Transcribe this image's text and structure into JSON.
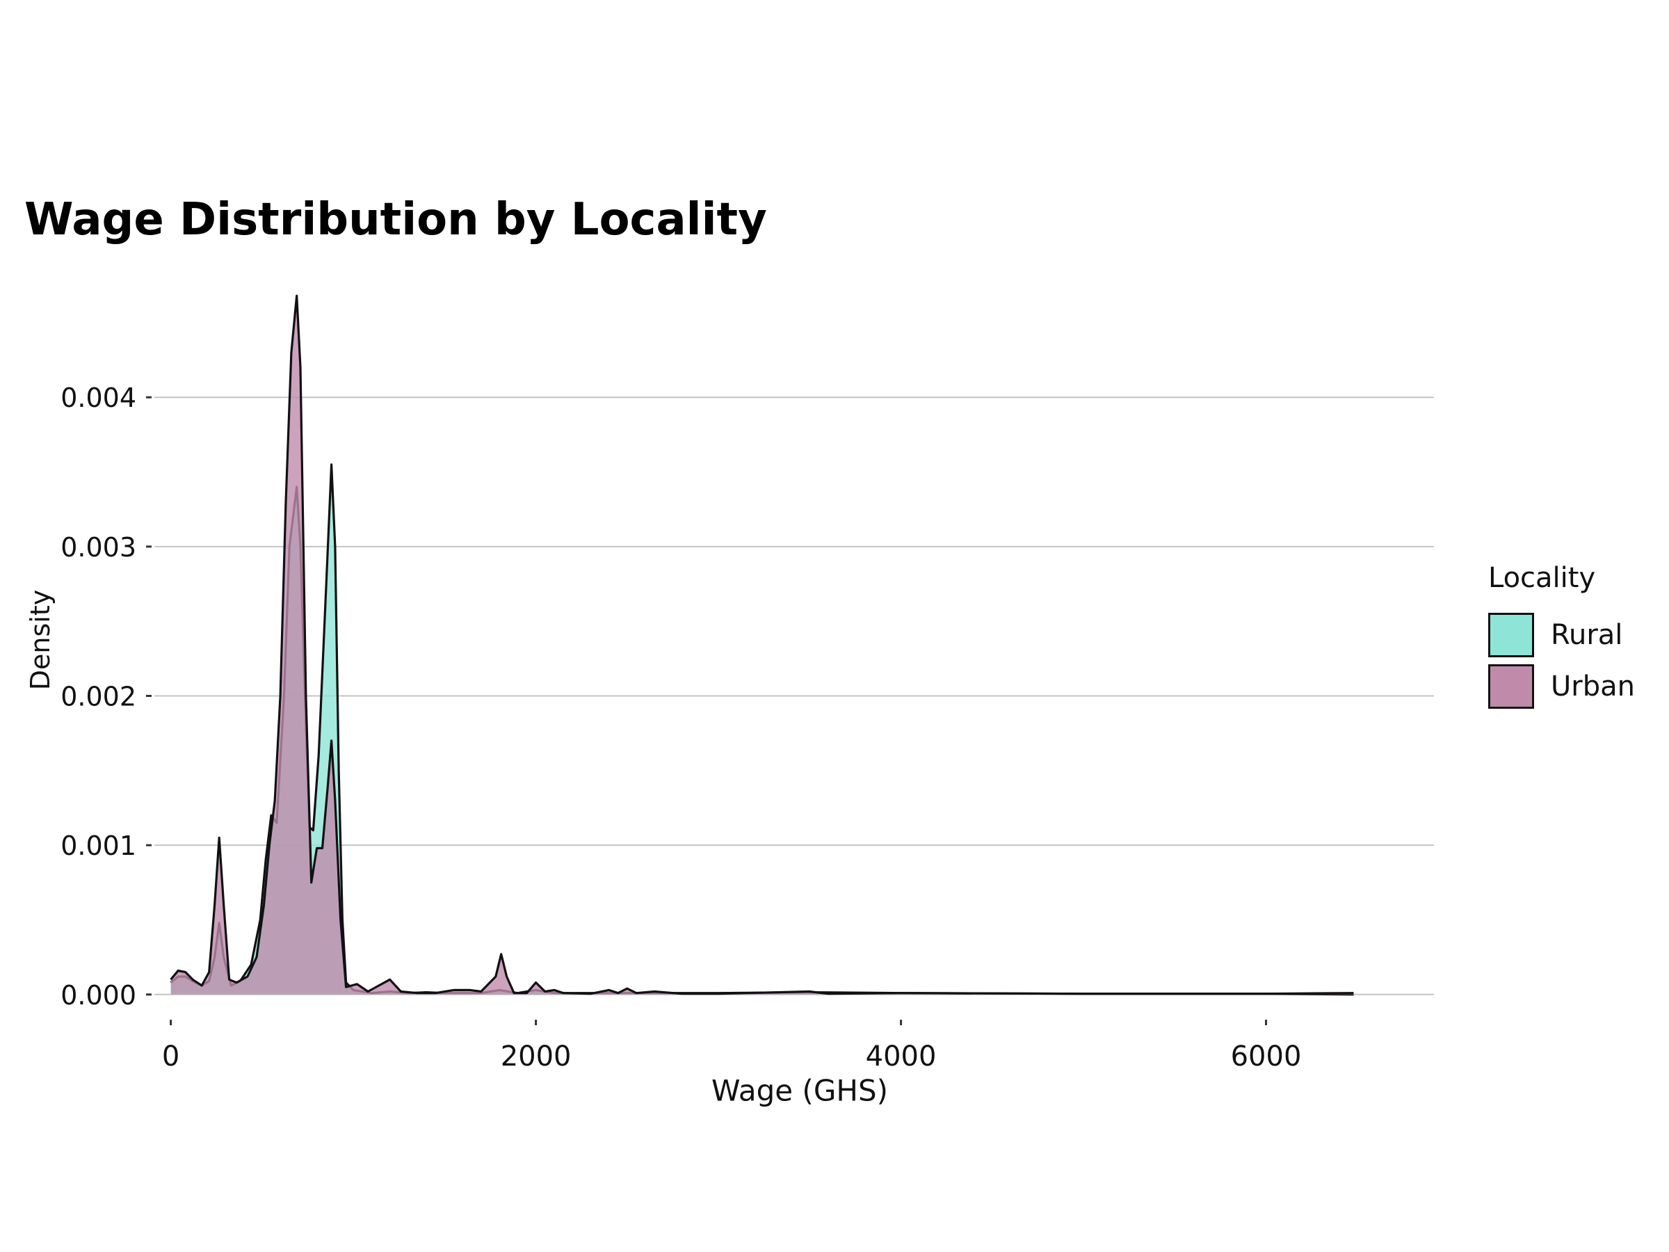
{
  "chart_data": {
    "type": "area",
    "title": "Wage Distribution by Locality",
    "xlabel": "Wage (GHS)",
    "ylabel": "Density",
    "xlim": [
      -90,
      6920
    ],
    "ylim": [
      -0.00015,
      0.0049
    ],
    "x_ticks": [
      0,
      2000,
      4000,
      6000
    ],
    "x_tick_labels": [
      "0",
      "2000",
      "4000",
      "6000"
    ],
    "y_ticks": [
      0.0,
      0.001,
      0.002,
      0.003,
      0.004
    ],
    "y_tick_labels": [
      "0.000",
      "0.001",
      "0.002",
      "0.003",
      "0.004"
    ],
    "grid": "horizontal major",
    "legend": {
      "title": "Locality",
      "placement": "right"
    },
    "series": [
      {
        "name": "Rural",
        "color": "#8EE5D7",
        "points": [
          [
            0,
            8e-05
          ],
          [
            40,
            0.00012
          ],
          [
            80,
            0.00012
          ],
          [
            120,
            9e-05
          ],
          [
            170,
            6e-05
          ],
          [
            210,
            9e-05
          ],
          [
            240,
            0.00025
          ],
          [
            265,
            0.00048
          ],
          [
            290,
            0.00025
          ],
          [
            330,
            6e-05
          ],
          [
            380,
            9e-05
          ],
          [
            440,
            0.0002
          ],
          [
            490,
            0.0005
          ],
          [
            520,
            0.0009
          ],
          [
            550,
            0.0012
          ],
          [
            580,
            0.00115
          ],
          [
            620,
            0.002
          ],
          [
            650,
            0.003
          ],
          [
            690,
            0.0034
          ],
          [
            710,
            0.003
          ],
          [
            740,
            0.0018
          ],
          [
            760,
            0.00112
          ],
          [
            780,
            0.0011
          ],
          [
            810,
            0.0016
          ],
          [
            850,
            0.0027
          ],
          [
            880,
            0.00355
          ],
          [
            900,
            0.003
          ],
          [
            920,
            0.0015
          ],
          [
            940,
            0.0005
          ],
          [
            960,
            8e-05
          ],
          [
            1000,
            3e-05
          ],
          [
            1100,
            1e-05
          ],
          [
            1200,
            2e-05
          ],
          [
            1300,
            1e-05
          ],
          [
            1400,
            1.5e-05
          ],
          [
            1500,
            1e-05
          ],
          [
            1600,
            1e-05
          ],
          [
            1700,
            1e-05
          ],
          [
            1800,
            3e-05
          ],
          [
            1900,
            1e-05
          ],
          [
            2000,
            3e-05
          ],
          [
            2100,
            1e-05
          ],
          [
            2400,
            1e-05
          ],
          [
            2600,
            1e-05
          ],
          [
            3000,
            1e-05
          ],
          [
            3500,
            1.5e-05
          ],
          [
            4000,
            1e-05
          ],
          [
            5000,
            5e-06
          ],
          [
            6000,
            5e-06
          ],
          [
            6480,
            0.0
          ]
        ]
      },
      {
        "name": "Urban",
        "color": "#C08BAB",
        "points": [
          [
            0,
            0.0001
          ],
          [
            40,
            0.00016
          ],
          [
            80,
            0.00015
          ],
          [
            120,
            0.0001
          ],
          [
            170,
            6e-05
          ],
          [
            210,
            0.00015
          ],
          [
            240,
            0.0006
          ],
          [
            265,
            0.00105
          ],
          [
            290,
            0.0006
          ],
          [
            320,
            0.0001
          ],
          [
            360,
            8e-05
          ],
          [
            420,
            0.00012
          ],
          [
            470,
            0.00025
          ],
          [
            510,
            0.0006
          ],
          [
            540,
            0.001
          ],
          [
            570,
            0.0013
          ],
          [
            600,
            0.002
          ],
          [
            630,
            0.0033
          ],
          [
            660,
            0.0043
          ],
          [
            690,
            0.00468
          ],
          [
            710,
            0.0042
          ],
          [
            740,
            0.002
          ],
          [
            770,
            0.00075
          ],
          [
            800,
            0.00098
          ],
          [
            830,
            0.00098
          ],
          [
            860,
            0.0014
          ],
          [
            880,
            0.0017
          ],
          [
            900,
            0.0013
          ],
          [
            930,
            0.0005
          ],
          [
            960,
            5e-05
          ],
          [
            1020,
            7e-05
          ],
          [
            1080,
            2e-05
          ],
          [
            1140,
            6e-05
          ],
          [
            1200,
            0.0001
          ],
          [
            1260,
            2e-05
          ],
          [
            1350,
            1e-05
          ],
          [
            1450,
            1e-05
          ],
          [
            1550,
            3e-05
          ],
          [
            1640,
            3e-05
          ],
          [
            1700,
            2e-05
          ],
          [
            1780,
            0.00012
          ],
          [
            1810,
            0.00027
          ],
          [
            1840,
            0.00012
          ],
          [
            1880,
            1e-05
          ],
          [
            1950,
            1e-05
          ],
          [
            2000,
            8e-05
          ],
          [
            2050,
            2e-05
          ],
          [
            2100,
            3e-05
          ],
          [
            2150,
            1e-05
          ],
          [
            2300,
            5e-06
          ],
          [
            2400,
            3e-05
          ],
          [
            2450,
            1e-05
          ],
          [
            2500,
            4e-05
          ],
          [
            2550,
            1e-05
          ],
          [
            2650,
            2e-05
          ],
          [
            2800,
            5e-06
          ],
          [
            3000,
            5e-06
          ],
          [
            3500,
            2e-05
          ],
          [
            3600,
            5e-06
          ],
          [
            4000,
            1e-05
          ],
          [
            5000,
            5e-06
          ],
          [
            6000,
            5e-06
          ],
          [
            6480,
            1e-05
          ]
        ]
      }
    ]
  }
}
